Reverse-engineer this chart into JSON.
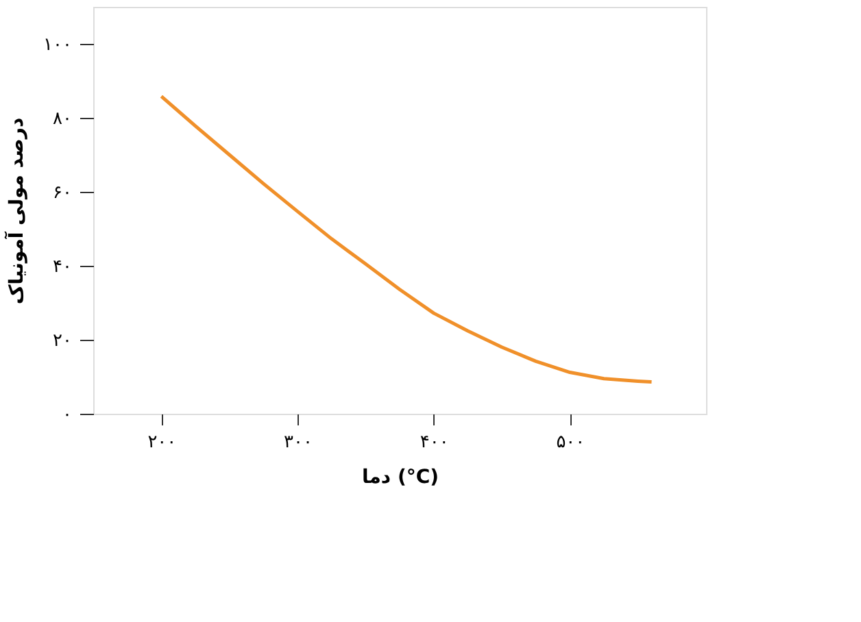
{
  "chart_data": {
    "type": "line",
    "xlabel": "دما (°C)",
    "ylabel": "درصد مولی آمونیاک",
    "x": [
      200,
      225,
      250,
      275,
      300,
      325,
      350,
      375,
      400,
      425,
      450,
      475,
      500,
      525,
      550,
      560
    ],
    "series": [
      {
        "color": "#f0902a",
        "values": [
          85.8,
          77.8,
          70,
          62.2,
          54.7,
          47.3,
          40.5,
          33.6,
          27.2,
          22.4,
          18,
          14.2,
          11.2,
          9.5,
          8.8,
          8.6
        ]
      }
    ],
    "xlim": [
      150,
      600
    ],
    "ylim": [
      0,
      110
    ],
    "xticks": [
      {
        "value": 200,
        "label": "۲۰۰"
      },
      {
        "value": 300,
        "label": "۳۰۰"
      },
      {
        "value": 400,
        "label": "۴۰۰"
      },
      {
        "value": 500,
        "label": "۵۰۰"
      }
    ],
    "yticks": [
      {
        "value": 0,
        "label": "۰"
      },
      {
        "value": 20,
        "label": "۲۰"
      },
      {
        "value": 40,
        "label": "۴۰"
      },
      {
        "value": 60,
        "label": "۶۰"
      },
      {
        "value": 80,
        "label": "۸۰"
      },
      {
        "value": 100,
        "label": "۱۰۰"
      }
    ],
    "grid": false,
    "legend": false,
    "marker": "none",
    "line_style": "solid"
  }
}
